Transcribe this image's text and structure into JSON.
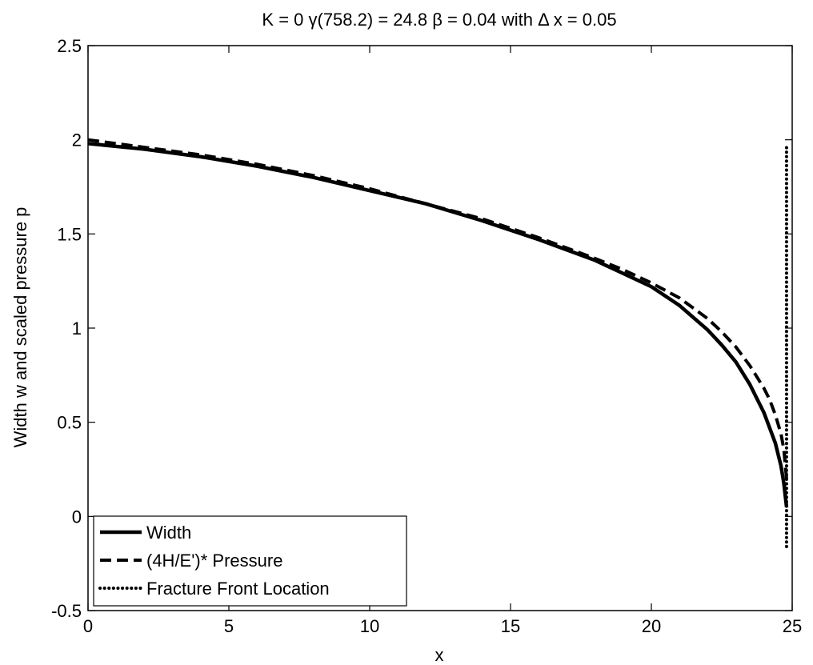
{
  "chart_data": {
    "type": "line",
    "title": "K = 0   γ(758.2) = 24.8  β = 0.04 with  Δ x = 0.05",
    "xlabel": "x",
    "ylabel": "Width w and scaled pressure p",
    "xlim": [
      0,
      25
    ],
    "ylim": [
      -0.5,
      2.5
    ],
    "xticks": [
      0,
      5,
      10,
      15,
      20,
      25
    ],
    "xtick_labels": [
      "0",
      "5",
      "10",
      "15",
      "20",
      "25"
    ],
    "yticks": [
      -0.5,
      0,
      0.5,
      1,
      1.5,
      2,
      2.5
    ],
    "ytick_labels": [
      "-0.5",
      "0",
      "0.5",
      "1",
      "1.5",
      "2",
      "2.5"
    ],
    "grid": false,
    "legend_position": "bottom-left",
    "series": [
      {
        "name": "Width",
        "style": "solid",
        "x": [
          0,
          2,
          4,
          6,
          8,
          10,
          12,
          14,
          16,
          18,
          19,
          20,
          21,
          22,
          22.5,
          23,
          23.5,
          24,
          24.2,
          24.4,
          24.6,
          24.7,
          24.8
        ],
        "y": [
          1.98,
          1.95,
          1.91,
          1.86,
          1.8,
          1.73,
          1.66,
          1.57,
          1.47,
          1.36,
          1.29,
          1.22,
          1.12,
          0.99,
          0.91,
          0.82,
          0.7,
          0.55,
          0.47,
          0.39,
          0.27,
          0.18,
          0.05
        ]
      },
      {
        "name": "(4H/E')* Pressure",
        "style": "dashed",
        "x": [
          0,
          2,
          4,
          6,
          8,
          10,
          12,
          14,
          16,
          18,
          19,
          20,
          21,
          22,
          22.5,
          23,
          23.5,
          24,
          24.2,
          24.4,
          24.6,
          24.7,
          24.8
        ],
        "y": [
          2.0,
          1.96,
          1.92,
          1.87,
          1.81,
          1.74,
          1.66,
          1.58,
          1.48,
          1.37,
          1.31,
          1.24,
          1.16,
          1.05,
          0.98,
          0.9,
          0.8,
          0.68,
          0.62,
          0.54,
          0.44,
          0.36,
          0.2
        ]
      },
      {
        "name": "Fracture Front Location",
        "style": "dotted",
        "x": [
          24.8,
          24.8
        ],
        "y": [
          -0.16,
          1.97
        ]
      }
    ]
  }
}
